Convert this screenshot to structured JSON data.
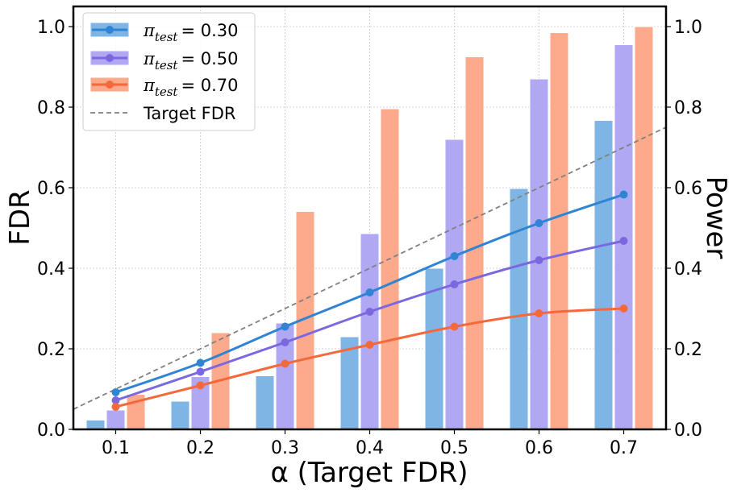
{
  "chart_data": {
    "type": "bar",
    "x": [
      0.1,
      0.2,
      0.3,
      0.4,
      0.5,
      0.6,
      0.7
    ],
    "x_tick_labels": [
      "0.1",
      "0.2",
      "0.3",
      "0.4",
      "0.5",
      "0.6",
      "0.7"
    ],
    "xlabel": "α (Target FDR)",
    "ylabel_left": "FDR",
    "ylabel_right": "Power",
    "xlim": [
      0.05,
      0.75
    ],
    "ylim_left": [
      0,
      1.05
    ],
    "ylim_right": [
      0,
      1.05
    ],
    "y_tick_labels": [
      "0.0",
      "0.2",
      "0.4",
      "0.6",
      "0.8",
      "1.0"
    ],
    "y_ticks": [
      0,
      0.2,
      0.4,
      0.6,
      0.8,
      1.0
    ],
    "grid": true,
    "legend_position": "top-left",
    "series": [
      {
        "name": "π_test = 0.30",
        "legend_symbol": "π",
        "legend_subscript": "test",
        "legend_value": "= 0.30",
        "color": "#2f84d3",
        "bar_color": "#7fb5e4",
        "power": [
          0.023,
          0.07,
          0.133,
          0.23,
          0.4,
          0.598,
          0.767
        ],
        "fdr": [
          0.092,
          0.165,
          0.255,
          0.34,
          0.43,
          0.512,
          0.583
        ]
      },
      {
        "name": "π_test = 0.50",
        "legend_symbol": "π",
        "legend_subscript": "test",
        "legend_value": "= 0.50",
        "color": "#7b68e0",
        "bar_color": "#b0a8f2",
        "power": [
          0.048,
          0.131,
          0.264,
          0.486,
          0.72,
          0.87,
          0.955
        ],
        "fdr": [
          0.072,
          0.143,
          0.216,
          0.292,
          0.36,
          0.42,
          0.468
        ]
      },
      {
        "name": "π_test = 0.70",
        "legend_symbol": "π",
        "legend_subscript": "test",
        "legend_value": "= 0.70",
        "color": "#f4683c",
        "bar_color": "#fca98c",
        "power": [
          0.087,
          0.24,
          0.541,
          0.796,
          0.925,
          0.985,
          1.0
        ],
        "fdr": [
          0.056,
          0.109,
          0.163,
          0.21,
          0.255,
          0.288,
          0.3
        ]
      }
    ],
    "target_line": {
      "name": "Target FDR",
      "color": "#808080",
      "x": [
        0.05,
        0.75
      ],
      "y": [
        0.05,
        0.75
      ]
    }
  }
}
